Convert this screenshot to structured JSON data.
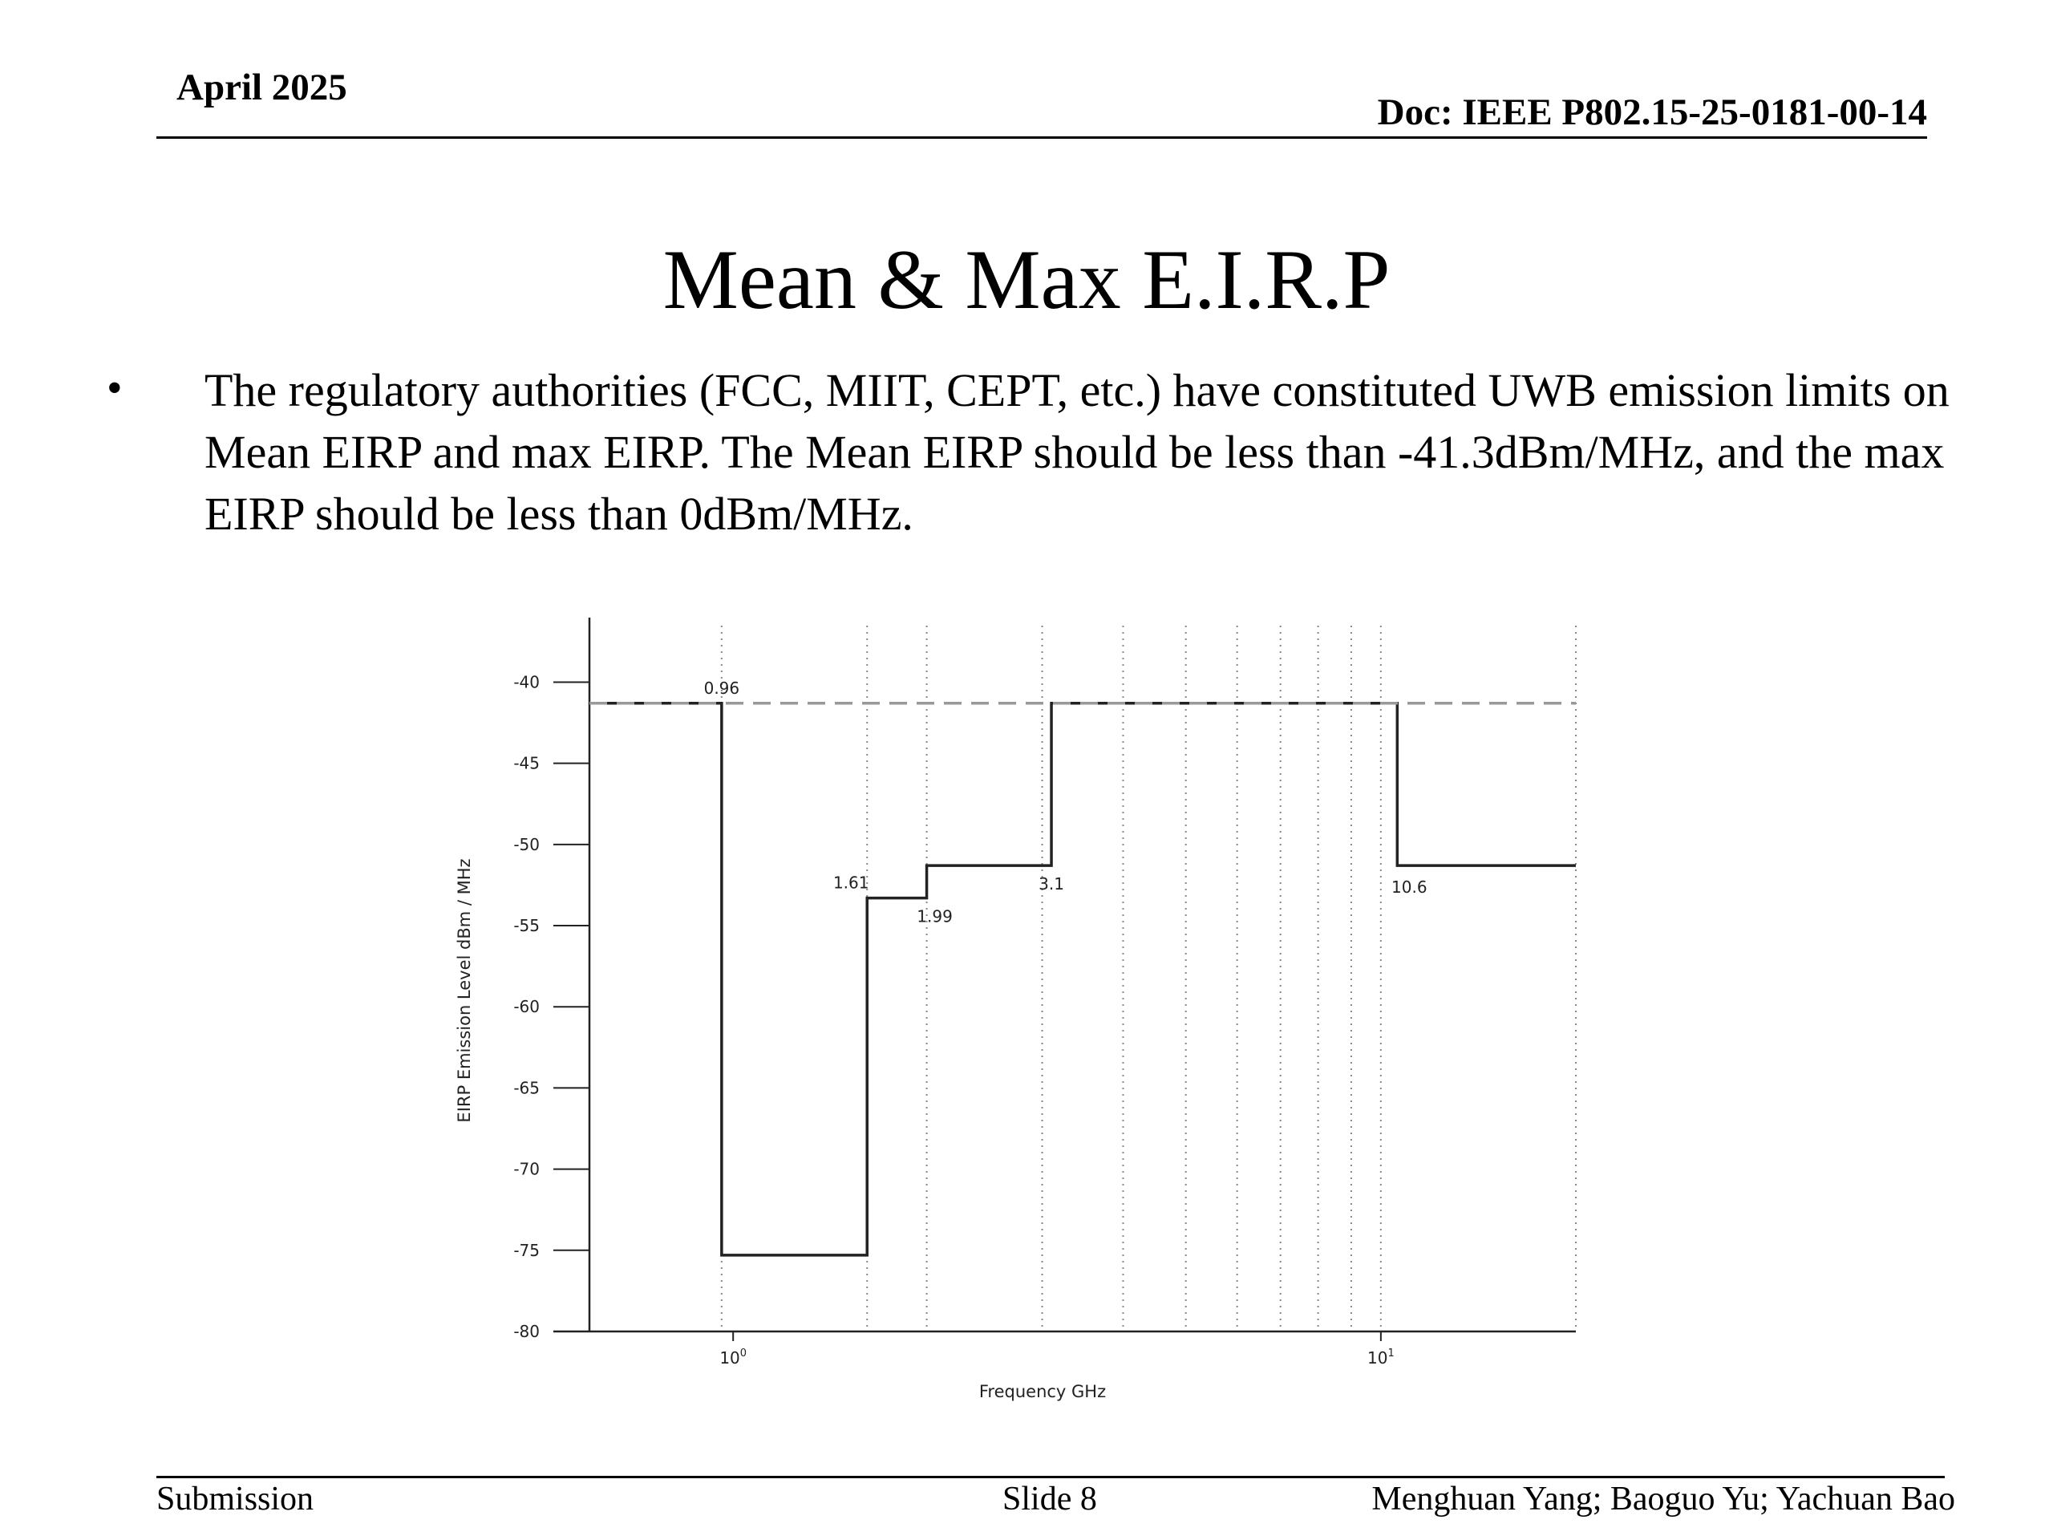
{
  "header": {
    "date": "April 2025",
    "doc_id": "Doc: IEEE P802.15-25-0181-00-14"
  },
  "title": "Mean & Max E.I.R.P",
  "bullet": {
    "symbol": "•",
    "text": "The regulatory authorities (FCC, MIIT, CEPT, etc.) have constituted UWB emission limits on Mean EIRP and max EIRP. The Mean EIRP should be less than -41.3dBm/MHz, and the max EIRP should be less than 0dBm/MHz."
  },
  "footer": {
    "left": "Submission",
    "center": "Slide 8",
    "right": "Menghuan Yang; Baoguo Yu; Yachuan Bao"
  },
  "chart_data": {
    "type": "line",
    "xlabel": "Frequency GHz",
    "ylabel": "EIRP Emission Level dBm / MHz",
    "x_scale": "log",
    "xlim": [
      0.6,
      20
    ],
    "ylim": [
      -80,
      -38
    ],
    "yticks": [
      -40,
      -45,
      -50,
      -55,
      -60,
      -65,
      -70,
      -75,
      -80
    ],
    "xticks": [
      {
        "value": 1,
        "base": "10",
        "exp": "0"
      },
      {
        "value": 10,
        "base": "10",
        "exp": "1"
      }
    ],
    "grid_x": [
      0.96,
      1.61,
      1.99,
      3,
      4,
      5,
      6,
      7,
      8,
      9,
      10,
      20
    ],
    "series": [
      {
        "style": "solid",
        "x": [
          0.6,
          0.96,
          0.96,
          1.61,
          1.61,
          1.99,
          1.99,
          3.1,
          3.1,
          10.6,
          10.6,
          20
        ],
        "y": [
          -41.3,
          -41.3,
          -75.3,
          -75.3,
          -53.3,
          -53.3,
          -51.3,
          -51.3,
          -41.3,
          -41.3,
          -51.3,
          -51.3
        ]
      },
      {
        "style": "dashed",
        "x": [
          0.6,
          20
        ],
        "y": [
          -41.3,
          -41.3
        ]
      }
    ],
    "annotations": [
      {
        "text": "0.96",
        "x": 0.96,
        "y": -41.3
      },
      {
        "text": "1.61",
        "x": 1.61,
        "y": -53.3
      },
      {
        "text": "1.99",
        "x": 1.99,
        "y": -53.3
      },
      {
        "text": "3.1",
        "x": 3.1,
        "y": -51.3
      },
      {
        "text": "10.6",
        "x": 10.6,
        "y": -51.3
      }
    ]
  }
}
